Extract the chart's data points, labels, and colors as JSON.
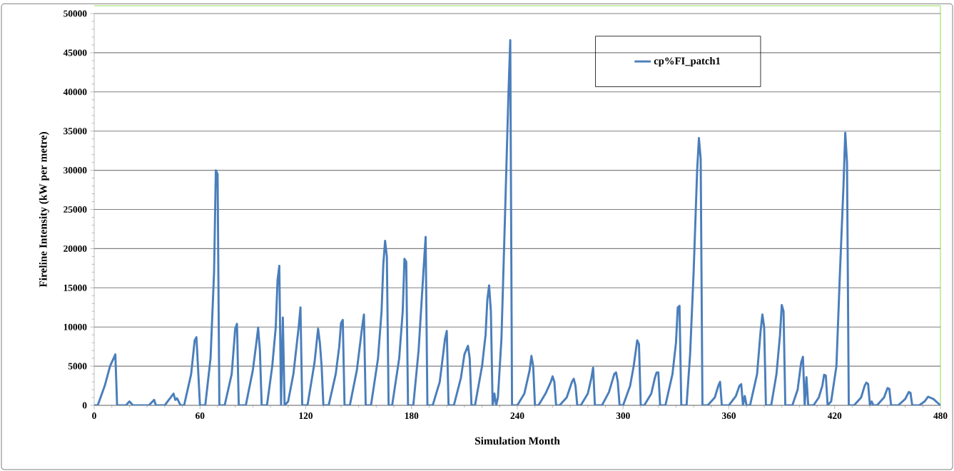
{
  "chart_data": {
    "type": "line",
    "xlabel": "Simulation Month",
    "ylabel": "Fireline Intensity (kW per metre)",
    "xlim": [
      0,
      480
    ],
    "xticks": [
      0,
      60,
      120,
      180,
      240,
      300,
      360,
      420,
      480
    ],
    "ylim": [
      0,
      50000
    ],
    "yticks": [
      0,
      5000,
      10000,
      15000,
      20000,
      25000,
      30000,
      35000,
      40000,
      45000,
      50000
    ],
    "grid": "y",
    "legend": "top right",
    "marker": "none",
    "line_style": "solid",
    "series": [
      {
        "name": "cp%FI_patch1",
        "color": "#4a7ebb",
        "x": [
          0,
          2,
          6,
          9,
          11,
          12,
          13,
          18,
          20,
          22,
          31,
          34,
          35,
          40,
          45,
          46,
          47,
          49,
          51,
          55,
          57,
          58,
          60,
          63,
          66,
          68,
          69,
          70,
          71,
          74,
          78,
          80,
          81,
          82,
          86,
          90,
          92,
          93,
          94,
          95,
          98,
          101,
          103,
          104,
          105,
          106,
          107,
          108,
          110,
          113,
          116,
          117,
          118,
          121,
          125,
          127,
          128,
          129,
          130,
          133,
          137,
          139,
          140,
          141,
          142,
          145,
          149,
          152,
          153,
          154,
          157,
          161,
          163,
          164,
          165,
          166,
          167,
          169,
          173,
          175,
          176,
          177,
          178,
          181,
          184,
          187,
          188,
          189,
          192,
          196,
          199,
          200,
          201,
          204,
          208,
          210,
          212,
          213,
          214,
          216,
          220,
          222,
          223,
          224,
          225,
          226,
          227,
          228,
          229,
          231,
          233,
          235,
          236,
          237,
          240,
          244,
          247,
          248,
          249,
          250,
          252,
          256,
          259,
          260,
          261,
          262,
          264,
          268,
          271,
          272,
          273,
          274,
          276,
          280,
          282,
          283,
          284,
          288,
          292,
          295,
          296,
          297,
          298,
          300,
          304,
          306,
          308,
          309,
          310,
          312,
          316,
          318,
          319,
          320,
          321,
          324,
          328,
          330,
          331,
          332,
          333,
          336,
          338,
          340,
          342,
          343,
          344,
          345,
          348,
          352,
          354,
          355,
          356,
          360,
          364,
          366,
          367,
          368,
          369,
          370,
          372,
          376,
          378,
          379,
          380,
          381,
          384,
          387,
          389,
          390,
          391,
          392,
          396,
          399,
          401,
          402,
          403,
          404,
          405,
          408,
          411,
          413,
          414,
          415,
          416,
          418,
          421,
          423,
          425,
          426,
          427,
          428,
          431,
          435,
          437,
          438,
          439,
          440,
          441,
          442,
          444,
          448,
          450,
          451,
          452,
          456,
          460,
          462,
          463,
          464,
          468,
          471,
          473,
          474,
          476,
          480
        ],
        "values": [
          0,
          0,
          2500,
          5000,
          6000,
          6500,
          0,
          0,
          500,
          0,
          0,
          700,
          0,
          0,
          1500,
          700,
          900,
          0,
          0,
          4000,
          8300,
          8700,
          0,
          0,
          6000,
          17000,
          30000,
          29500,
          0,
          0,
          4000,
          9800,
          10400,
          0,
          0,
          4500,
          8000,
          9900,
          7000,
          0,
          0,
          5000,
          10000,
          16000,
          17800,
          0,
          11200,
          0,
          500,
          4000,
          10000,
          12500,
          0,
          0,
          5500,
          9800,
          8000,
          5000,
          0,
          0,
          4000,
          7500,
          10500,
          10900,
          0,
          0,
          4500,
          10000,
          11600,
          0,
          0,
          6000,
          12000,
          18000,
          21000,
          19000,
          0,
          0,
          6000,
          12000,
          18700,
          18300,
          0,
          0,
          7000,
          18000,
          21500,
          0,
          0,
          3000,
          8500,
          9500,
          0,
          0,
          3500,
          6500,
          7600,
          6000,
          0,
          0,
          5000,
          9000,
          13500,
          15300,
          12000,
          0,
          1500,
          0,
          1000,
          8500,
          24000,
          40000,
          46600,
          0,
          0,
          1500,
          4500,
          6300,
          5000,
          0,
          0,
          1500,
          3000,
          3700,
          3000,
          0,
          0,
          1000,
          3000,
          3400,
          2500,
          0,
          0,
          1500,
          3500,
          4800,
          0,
          0,
          1700,
          4000,
          4200,
          3000,
          0,
          0,
          2500,
          5000,
          8300,
          7800,
          0,
          0,
          1500,
          3500,
          4200,
          4200,
          0,
          0,
          4000,
          8000,
          12500,
          12700,
          0,
          0,
          6500,
          17000,
          30000,
          34100,
          31500,
          0,
          0,
          1000,
          2500,
          3000,
          0,
          0,
          1200,
          2500,
          2700,
          0,
          1200,
          0,
          0,
          4000,
          9500,
          11600,
          10000,
          0,
          0,
          4000,
          9000,
          12800,
          12000,
          0,
          0,
          2000,
          5500,
          6200,
          0,
          3600,
          0,
          0,
          1000,
          2500,
          3900,
          3800,
          0,
          500,
          5000,
          17000,
          28000,
          34800,
          31000,
          0,
          0,
          1000,
          2500,
          2900,
          2700,
          0,
          500,
          0,
          0,
          1000,
          2200,
          2100,
          0,
          0,
          800,
          1700,
          1600,
          0,
          0,
          500,
          1100,
          1000,
          800,
          0
        ]
      }
    ]
  }
}
